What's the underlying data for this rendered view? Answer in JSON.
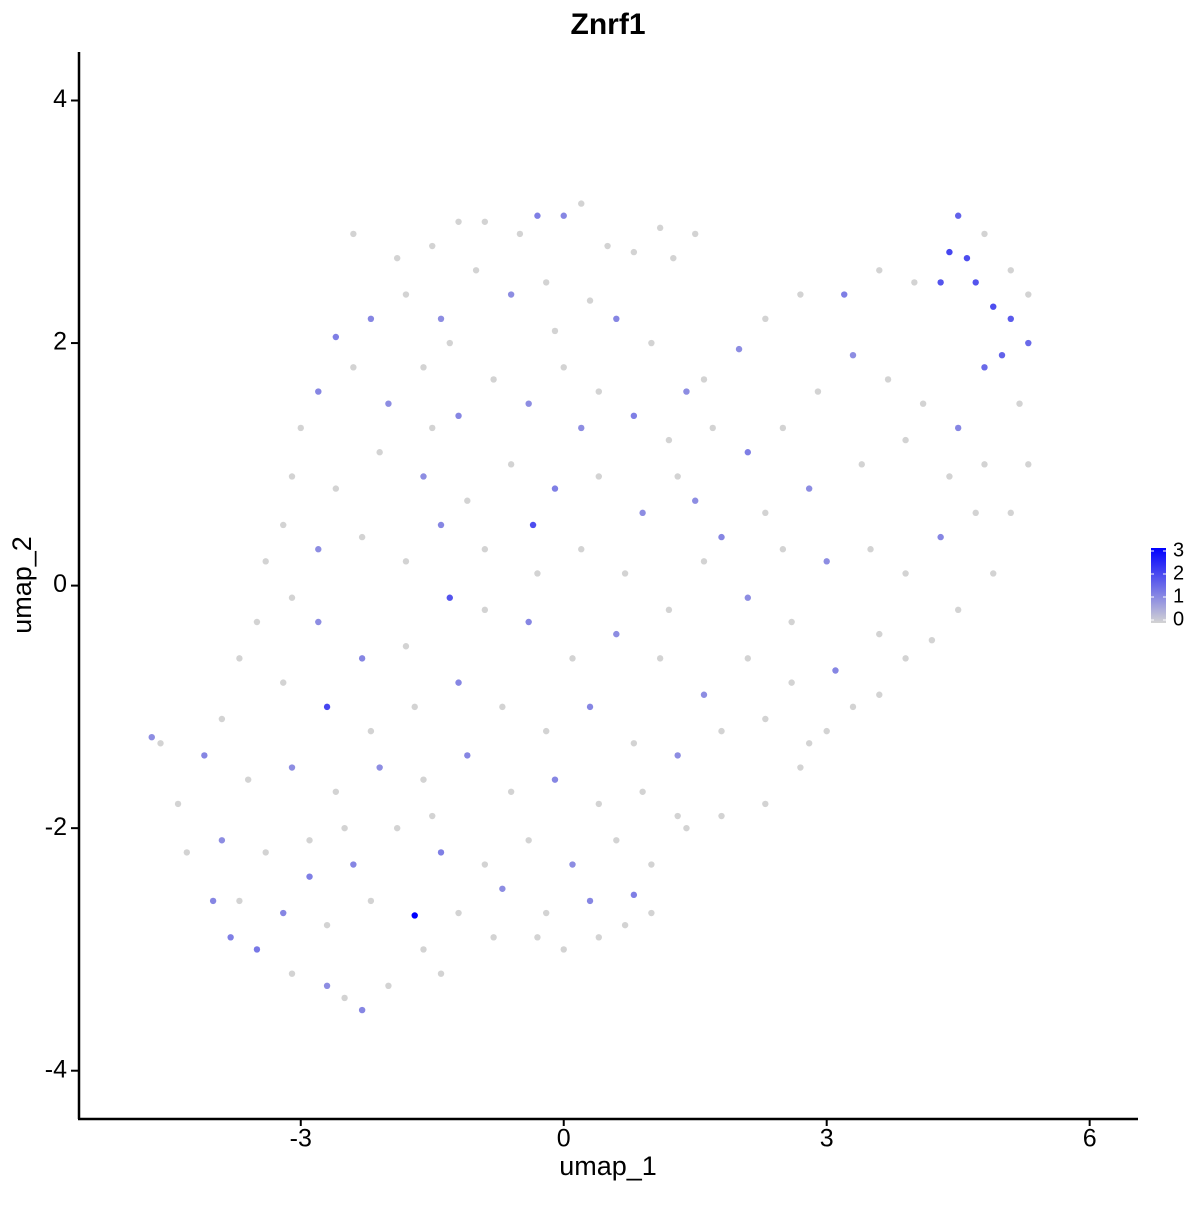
{
  "chart_data": {
    "type": "scatter",
    "title": "Znrf1",
    "x_label": "umap_1",
    "y_label": "umap_2",
    "xlim": [
      -5.53,
      6.54
    ],
    "ylim": [
      -4.39,
      4.4
    ],
    "xticks": [
      -3,
      0,
      3,
      6
    ],
    "yticks": [
      -4,
      -2,
      0,
      2,
      4
    ],
    "color_low": "#d3d3d3",
    "color_high": "#0000ff",
    "colorbar_lim": [
      0,
      3
    ],
    "colorbar_ticks": [
      0,
      1,
      2,
      3
    ],
    "x": [
      -2.4,
      -1.9,
      -1.5,
      -1.2,
      -0.9,
      -0.5,
      -0.3,
      0.0,
      0.2,
      0.5,
      0.8,
      1.1,
      1.5,
      1.25,
      -2.6,
      -2.8,
      -3.0,
      -3.1,
      -3.2,
      -3.4,
      -3.5,
      -3.7,
      -3.9,
      -4.1,
      -4.6,
      -4.7,
      -4.4,
      -4.3,
      -4.0,
      -3.8,
      -3.5,
      -3.1,
      -2.7,
      -2.5,
      -2.3,
      -2.0,
      -1.6,
      -1.4,
      -0.8,
      -0.3,
      0.0,
      0.4,
      0.7,
      1.0,
      1.0,
      1.4,
      1.8,
      2.3,
      2.7,
      3.0,
      3.3,
      3.6,
      3.9,
      4.2,
      4.5,
      4.9,
      5.1,
      5.3,
      5.2,
      5.3,
      5.3,
      5.1,
      4.8,
      4.5,
      4.4,
      4.6,
      4.7,
      4.9,
      5.1,
      5.0,
      4.8,
      4.3,
      4.0,
      3.6,
      3.2,
      2.7,
      2.3,
      2.0,
      1.6,
      1.4,
      -2.2,
      -1.8,
      -1.4,
      -1.0,
      -0.6,
      -0.2,
      0.3,
      0.6,
      -2.4,
      -2.0,
      -1.6,
      -1.2,
      -0.8,
      -0.4,
      0.0,
      0.4,
      0.8,
      1.2,
      1.7,
      2.1,
      2.5,
      2.9,
      3.3,
      3.7,
      4.1,
      4.5,
      4.8,
      3.9,
      3.4,
      2.8,
      2.3,
      1.8,
      1.3,
      0.9,
      0.4,
      -0.1,
      -0.6,
      -1.1,
      -1.6,
      -2.1,
      -2.6,
      -2.8,
      -2.3,
      -1.8,
      -1.4,
      -0.9,
      -0.35,
      0.2,
      0.7,
      1.2,
      1.6,
      2.1,
      2.6,
      3.0,
      3.5,
      3.9,
      4.3,
      4.7,
      4.4,
      3.6,
      3.1,
      2.6,
      2.1,
      1.6,
      1.1,
      0.6,
      0.1,
      -0.4,
      -0.9,
      -1.3,
      -1.8,
      -2.3,
      -2.8,
      -3.1,
      -3.2,
      -2.7,
      -2.2,
      -1.7,
      -1.2,
      -0.7,
      -0.2,
      0.3,
      0.8,
      1.3,
      1.8,
      2.3,
      2.8,
      -3.6,
      -3.1,
      -2.6,
      -2.1,
      -1.6,
      -1.1,
      -0.6,
      -0.1,
      0.4,
      0.9,
      1.3,
      -3.9,
      -3.4,
      -2.9,
      -2.4,
      -1.9,
      -1.4,
      -0.9,
      -0.4,
      0.1,
      0.6,
      -3.7,
      -3.2,
      -2.7,
      -2.2,
      -1.7,
      -1.2,
      -0.7,
      -0.2,
      0.3,
      0.8,
      -2.9,
      -2.5,
      -1.5,
      1.5,
      2.5,
      1.0,
      -0.1,
      -1.3,
      0.2,
      -0.3,
      -1.5
    ],
    "y": [
      2.9,
      2.7,
      2.8,
      3.0,
      3.0,
      2.9,
      3.05,
      3.05,
      3.15,
      2.8,
      2.75,
      2.95,
      2.9,
      2.7,
      2.05,
      1.6,
      1.3,
      0.9,
      0.5,
      0.2,
      -0.3,
      -0.6,
      -1.1,
      -1.4,
      -1.3,
      -1.25,
      -1.8,
      -2.2,
      -2.6,
      -2.9,
      -3.0,
      -3.2,
      -3.3,
      -3.4,
      -3.5,
      -3.3,
      -3.0,
      -3.2,
      -2.9,
      -2.9,
      -3.0,
      -2.9,
      -2.8,
      -2.7,
      -2.3,
      -2.0,
      -1.9,
      -1.8,
      -1.5,
      -1.2,
      -1.0,
      -0.9,
      -0.6,
      -0.45,
      -0.2,
      0.1,
      0.6,
      1.0,
      1.5,
      2.0,
      2.4,
      2.6,
      2.9,
      3.05,
      2.75,
      2.7,
      2.5,
      2.3,
      2.2,
      1.9,
      1.8,
      2.5,
      2.5,
      2.6,
      2.4,
      2.4,
      2.2,
      1.95,
      1.7,
      1.6,
      2.2,
      2.4,
      2.2,
      2.6,
      2.4,
      2.5,
      2.35,
      2.2,
      1.8,
      1.5,
      1.8,
      1.4,
      1.7,
      1.5,
      1.8,
      1.6,
      1.4,
      1.2,
      1.3,
      1.1,
      1.3,
      1.6,
      1.9,
      1.7,
      1.5,
      1.3,
      1.0,
      1.2,
      1.0,
      0.8,
      0.6,
      0.4,
      0.9,
      0.6,
      0.9,
      0.8,
      1.0,
      0.7,
      0.9,
      1.1,
      0.8,
      0.3,
      0.4,
      0.2,
      0.5,
      0.3,
      0.5,
      0.3,
      0.1,
      -0.2,
      0.2,
      -0.1,
      -0.3,
      0.2,
      0.3,
      0.1,
      0.4,
      0.6,
      0.9,
      -0.4,
      -0.7,
      -0.8,
      -0.6,
      -0.9,
      -0.6,
      -0.4,
      -0.6,
      -0.3,
      -0.2,
      -0.1,
      -0.5,
      -0.6,
      -0.3,
      -0.1,
      -0.8,
      -1.0,
      -1.2,
      -1.0,
      -0.8,
      -1.0,
      -1.2,
      -1.0,
      -1.3,
      -1.4,
      -1.2,
      -1.1,
      -1.3,
      -1.6,
      -1.5,
      -1.7,
      -1.5,
      -1.6,
      -1.4,
      -1.7,
      -1.6,
      -1.8,
      -1.7,
      -1.9,
      -2.1,
      -2.2,
      -2.1,
      -2.3,
      -2.0,
      -2.2,
      -2.3,
      -2.1,
      -2.3,
      -2.1,
      -2.6,
      -2.7,
      -2.8,
      -2.6,
      -2.72,
      -2.7,
      -2.5,
      -2.7,
      -2.6,
      -2.55,
      -2.4,
      -2.0,
      -1.9,
      0.7,
      0.3,
      2.0,
      2.1,
      2.0,
      1.3,
      0.1,
      1.3
    ],
    "values": [
      0,
      0,
      0,
      0,
      0,
      0,
      1.2,
      1.1,
      0,
      0,
      0,
      0,
      0,
      0,
      1.2,
      1.1,
      0,
      0,
      0,
      0,
      0,
      0,
      0,
      1.1,
      0,
      1,
      0,
      0,
      1.1,
      1.2,
      1.3,
      0,
      1,
      0,
      1.1,
      0,
      0,
      0,
      0,
      0,
      0,
      0,
      0,
      0,
      0,
      0,
      0,
      0,
      0,
      0,
      0,
      0,
      0,
      0,
      0,
      0,
      0,
      0,
      0,
      1.5,
      0,
      0,
      0,
      1.6,
      2.0,
      1.9,
      1.8,
      1.9,
      1.7,
      1.6,
      1.5,
      1.8,
      0,
      0,
      1.2,
      0,
      0,
      1,
      0,
      1,
      1.1,
      0,
      1,
      0,
      1,
      0,
      0,
      1.1,
      0,
      1,
      0,
      1.1,
      0,
      1,
      0,
      0,
      1.2,
      0,
      0,
      1.2,
      0,
      0,
      1,
      0,
      0,
      1.1,
      0,
      0,
      0,
      1,
      0,
      1.1,
      0,
      1,
      0,
      1.2,
      0,
      0,
      1,
      0,
      0,
      1,
      0,
      0,
      1.1,
      0,
      1.9,
      0,
      0,
      0,
      0,
      1,
      0,
      1,
      0,
      0,
      1.1,
      0,
      0,
      0,
      1.1,
      0,
      0,
      1,
      0,
      1,
      0,
      1.1,
      0,
      1.8,
      0,
      1.1,
      1,
      0,
      0,
      2.0,
      0,
      0,
      1.1,
      0,
      0,
      1.1,
      0,
      1,
      0,
      0,
      0,
      0,
      1,
      0,
      1,
      0,
      1.1,
      0,
      1.1,
      0,
      0,
      0,
      1,
      0,
      0,
      1.1,
      0,
      1.2,
      0,
      0,
      1,
      0,
      0,
      1.1,
      0,
      0,
      3.0,
      0,
      1,
      0,
      1.1,
      1.2,
      1.2,
      0,
      0,
      1,
      0,
      0,
      0,
      0,
      1,
      0,
      0
    ]
  }
}
